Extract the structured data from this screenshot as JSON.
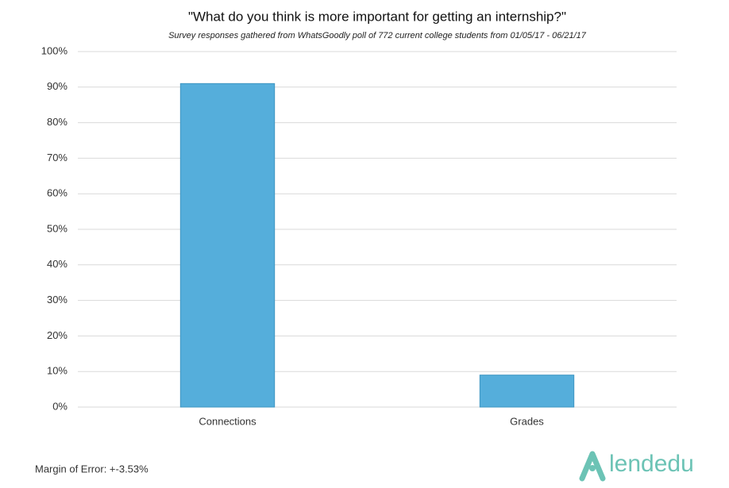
{
  "chart_data": {
    "type": "bar",
    "title": "\"What do you think is more important for getting an internship?\"",
    "subtitle": "Survey responses gathered from WhatsGoodly poll of 772 current college students from 01/05/17 - 06/21/17",
    "categories": [
      "Connections",
      "Grades"
    ],
    "values": [
      91,
      9
    ],
    "color": "#55aedb",
    "ylim": [
      0,
      100
    ],
    "yticks": [
      {
        "value": 0,
        "label": "0%"
      },
      {
        "value": 10,
        "label": "10%"
      },
      {
        "value": 20,
        "label": "20%"
      },
      {
        "value": 30,
        "label": "30%"
      },
      {
        "value": 40,
        "label": "40%"
      },
      {
        "value": 50,
        "label": "50%"
      },
      {
        "value": 60,
        "label": "60%"
      },
      {
        "value": 70,
        "label": "70%"
      },
      {
        "value": 80,
        "label": "80%"
      },
      {
        "value": 90,
        "label": "90%"
      },
      {
        "value": 100,
        "label": "100%"
      }
    ],
    "grid": true,
    "footnote": "Margin of Error: +-3.53%",
    "logo_text": "lendedu"
  }
}
